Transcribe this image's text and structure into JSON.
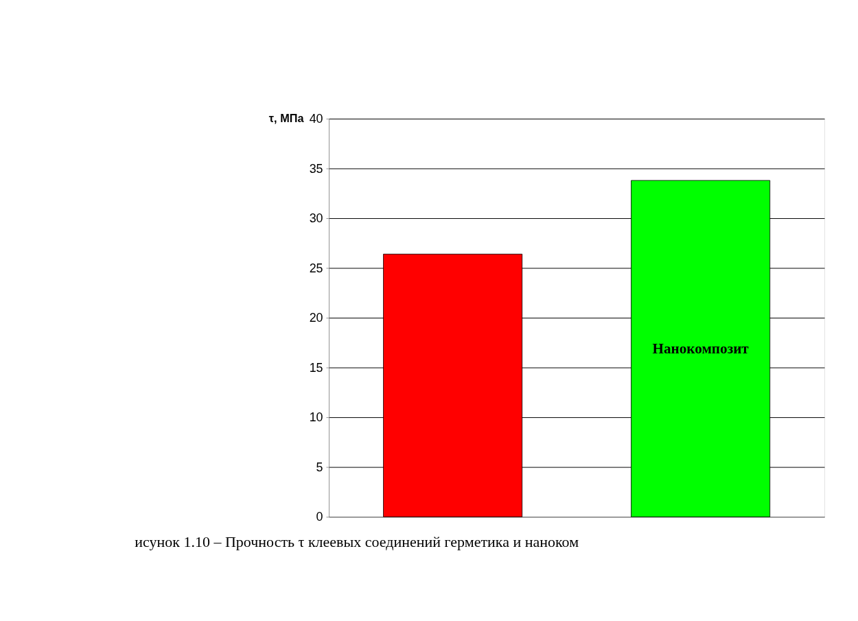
{
  "chart_data": {
    "type": "bar",
    "ylabel": "τ, МПа",
    "categories": [
      null,
      "Нанокомпозит"
    ],
    "values": [
      26.4,
      33.8
    ],
    "colors": [
      "#ff0000",
      "#00ff00"
    ],
    "ylim": [
      0,
      40
    ],
    "yticks": [
      0,
      5,
      10,
      15,
      20,
      25,
      30,
      35,
      40
    ],
    "grid": "y",
    "legend": false,
    "annotations": [
      "исунок 1.10 – Прочность τ клеевых соединений герметика и наноком"
    ]
  }
}
